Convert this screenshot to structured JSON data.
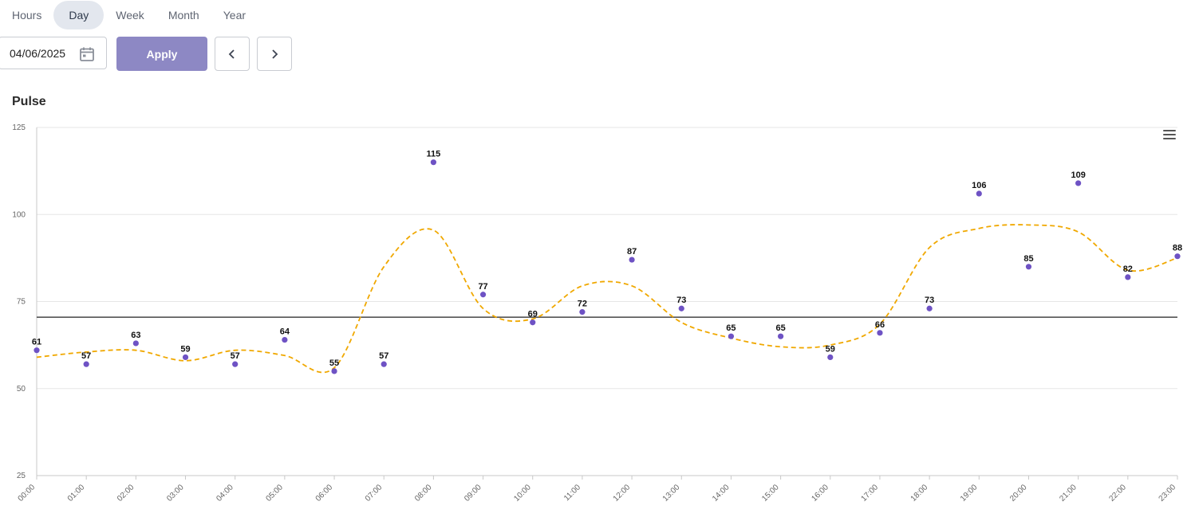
{
  "tabs": [
    {
      "label": "Hours",
      "active": false
    },
    {
      "label": "Day",
      "active": true
    },
    {
      "label": "Week",
      "active": false
    },
    {
      "label": "Month",
      "active": false
    },
    {
      "label": "Year",
      "active": false
    }
  ],
  "toolbar": {
    "date_value": "04/06/2025",
    "apply_label": "Apply",
    "prev_icon": "chevron-left-icon",
    "next_icon": "chevron-right-icon",
    "calendar_icon": "calendar-icon"
  },
  "chart_title": "Pulse",
  "menu_icon": "hamburger-menu-icon",
  "colors": {
    "points": "#6e52c4",
    "trend": "#f0a800",
    "reference": "#555555",
    "accent": "#8d88c4"
  },
  "chart_data": {
    "type": "scatter",
    "title": "Pulse",
    "categories": [
      "00:00",
      "01:00",
      "02:00",
      "03:00",
      "04:00",
      "05:00",
      "06:00",
      "07:00",
      "08:00",
      "09:00",
      "10:00",
      "11:00",
      "12:00",
      "13:00",
      "14:00",
      "15:00",
      "16:00",
      "17:00",
      "18:00",
      "19:00",
      "20:00",
      "21:00",
      "22:00",
      "23:00"
    ],
    "series": [
      {
        "values": [
          61,
          57,
          63,
          59,
          57,
          64,
          55,
          57,
          115,
          77,
          69,
          72,
          87,
          73,
          65,
          65,
          59,
          66,
          73,
          106,
          85,
          109,
          82,
          88
        ],
        "style": "points",
        "data_labels": true
      },
      {
        "values": [
          59,
          60.5,
          61,
          58,
          61,
          59.5,
          56,
          85,
          95.5,
          73,
          70,
          79.5,
          79.5,
          69,
          64.5,
          62,
          62.5,
          68.5,
          90.5,
          96,
          97,
          95,
          84,
          87.5
        ],
        "style": "dashed-smooth-line"
      }
    ],
    "reference_line": 70.5,
    "ylim": [
      25,
      125
    ],
    "yticks": [
      25,
      50,
      75,
      100,
      125
    ],
    "grid": true,
    "xlabel": "",
    "ylabel": ""
  }
}
